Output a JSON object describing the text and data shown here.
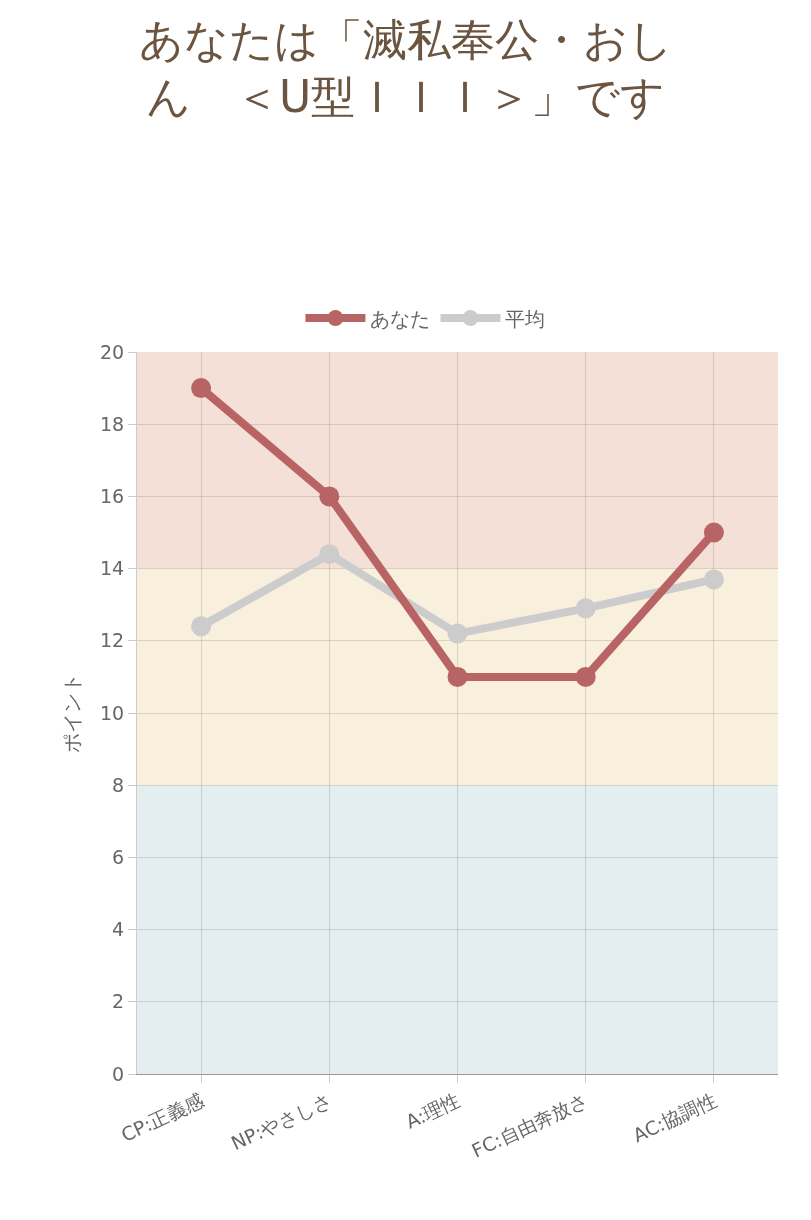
{
  "chart_data": {
    "type": "line",
    "title": "あなたは「滅私奉公・おしん　＜U型ＩＩＩ＞」です",
    "ylabel": "ポイント",
    "categories": [
      "CP:正義感",
      "NP:やさしさ",
      "A:理性",
      "FC:自由奔放さ",
      "AC:協調性"
    ],
    "series": [
      {
        "name": "あなた",
        "color": "#b86464",
        "values": [
          19,
          16,
          11,
          11,
          15
        ]
      },
      {
        "name": "平均",
        "color": "#cccccc",
        "values": [
          12.4,
          14.4,
          12.2,
          12.9,
          13.7
        ]
      }
    ],
    "ylim": [
      0,
      20
    ],
    "yticks": [
      0,
      2,
      4,
      6,
      8,
      10,
      12,
      14,
      16,
      18,
      20
    ],
    "bands": [
      {
        "axis": "y",
        "from": 0,
        "to": 8,
        "color": "#e4eef0"
      },
      {
        "axis": "y",
        "from": 8,
        "to": 14,
        "color": "#f8f0dc"
      },
      {
        "axis": "y",
        "from": 14,
        "to": 20,
        "color": "#f5e0d7"
      }
    ],
    "grid": true,
    "legend": "top",
    "marker": "circle",
    "line_style": "solid"
  }
}
